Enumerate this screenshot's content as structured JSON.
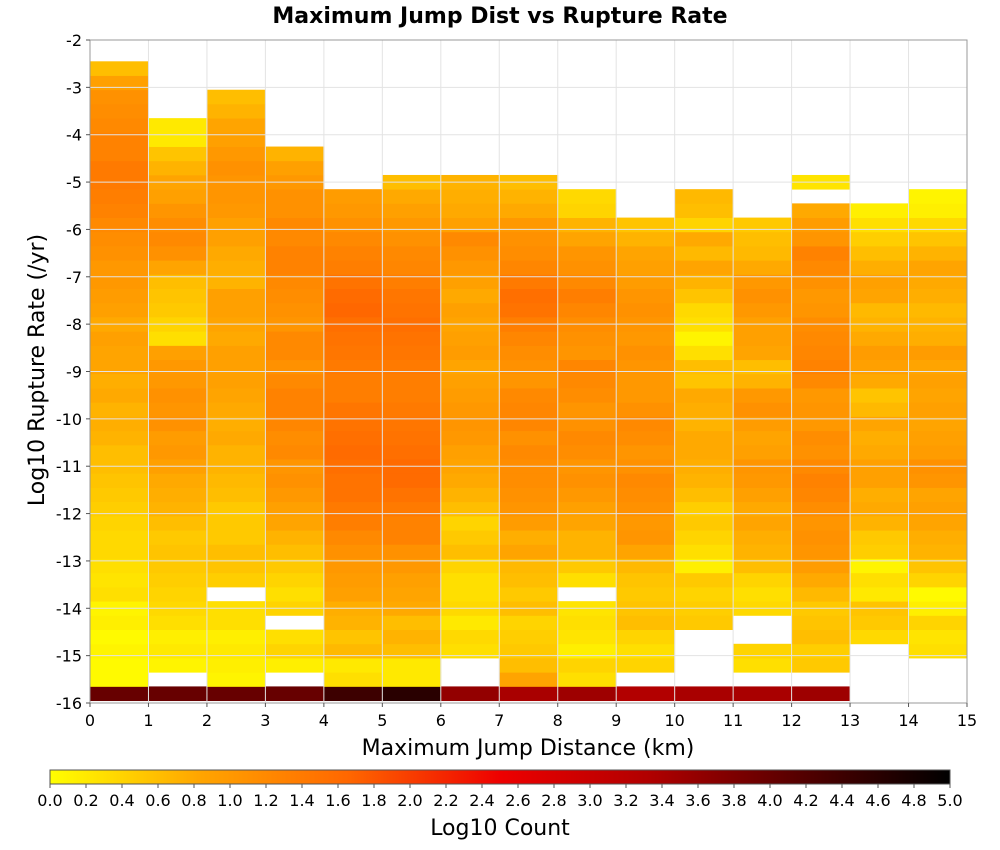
{
  "chart_data": {
    "type": "heatmap",
    "title": "Maximum Jump Dist vs Rupture Rate",
    "xlabel": "Maximum Jump Distance (km)",
    "ylabel": "Log10 Rupture Rate (/yr)",
    "colorbar_label": "Log10 Count",
    "xlim": [
      0,
      15
    ],
    "ylim": [
      -16,
      -2
    ],
    "x_ticks": [
      "0",
      "1",
      "2",
      "3",
      "4",
      "5",
      "6",
      "7",
      "8",
      "9",
      "10",
      "11",
      "12",
      "13",
      "14",
      "15"
    ],
    "y_ticks": [
      "-2",
      "-3",
      "-4",
      "-5",
      "-6",
      "-7",
      "-8",
      "-9",
      "-10",
      "-11",
      "-12",
      "-13",
      "-14",
      "-15",
      "-16"
    ],
    "colorbar_ticks": [
      "0.0",
      "0.2",
      "0.4",
      "0.6",
      "0.8",
      "1.0",
      "1.2",
      "1.4",
      "1.6",
      "1.8",
      "2.0",
      "2.2",
      "2.4",
      "2.6",
      "2.8",
      "3.0",
      "3.2",
      "3.4",
      "3.6",
      "3.8",
      "4.0",
      "4.2",
      "4.4",
      "4.6",
      "4.8",
      "5.0"
    ],
    "colorbar_range": [
      0,
      5
    ],
    "grid": true,
    "x_bin_width": 1,
    "y_bin_width": 0.3,
    "y_bin_start": -15.95,
    "colorscale": [
      "#ffff00",
      "#ffa500",
      "#ff6600",
      "#ee0000",
      "#b00000",
      "#550000",
      "#000000"
    ],
    "columns": [
      {
        "x": 0,
        "values": [
          4.0,
          0.05,
          0.05,
          0.1,
          0.05,
          0.15,
          0.1,
          0.3,
          0.25,
          0.3,
          0.35,
          0.35,
          0.4,
          0.45,
          0.5,
          0.55,
          0.6,
          0.6,
          0.7,
          0.75,
          0.7,
          0.8,
          0.75,
          0.85,
          0.85,
          0.9,
          0.8,
          0.9,
          0.95,
          1.0,
          1.0,
          1.1,
          1.15,
          1.2,
          1.3,
          1.35,
          1.4,
          1.4,
          1.3,
          1.3,
          1.2,
          1.15,
          1.1,
          0.9,
          0.6
        ]
      },
      {
        "x": 1,
        "values": [
          4.0,
          null,
          0.1,
          0.2,
          0.15,
          0.3,
          0.35,
          0.4,
          0.45,
          0.5,
          0.55,
          0.5,
          0.6,
          0.7,
          0.75,
          0.8,
          0.9,
          1.0,
          0.95,
          1.1,
          1.05,
          1.1,
          1.0,
          1.0,
          0.9,
          0.3,
          0.4,
          0.5,
          0.55,
          0.6,
          0.85,
          1.1,
          1.2,
          1.15,
          1.05,
          0.9,
          0.85,
          0.7,
          0.55,
          0.2,
          0.2
        ]
      },
      {
        "x": 2,
        "values": [
          4.0,
          0.1,
          0.15,
          0.2,
          0.15,
          0.3,
          0.3,
          null,
          0.45,
          0.55,
          0.6,
          0.5,
          0.5,
          0.5,
          0.6,
          0.65,
          0.7,
          0.7,
          0.8,
          0.75,
          0.8,
          0.85,
          0.9,
          0.9,
          0.9,
          0.8,
          0.85,
          0.9,
          0.9,
          0.7,
          0.75,
          0.8,
          0.9,
          0.9,
          1.0,
          1.05,
          1.05,
          1.1,
          1.0,
          0.9,
          0.85,
          0.7,
          0.6
        ]
      },
      {
        "x": 3,
        "values": [
          4.0,
          null,
          0.15,
          0.4,
          0.3,
          null,
          0.4,
          0.3,
          0.4,
          0.5,
          0.6,
          0.7,
          0.85,
          0.9,
          1.0,
          1.1,
          1.05,
          1.2,
          1.15,
          1.25,
          1.3,
          1.3,
          1.2,
          1.1,
          1.2,
          1.2,
          1.05,
          1.1,
          1.15,
          1.2,
          1.3,
          1.3,
          1.2,
          1.2,
          1.1,
          1.1,
          1.0,
          0.9,
          0.7
        ]
      },
      {
        "x": 4,
        "values": [
          4.4,
          0.3,
          0.2,
          0.65,
          0.55,
          0.7,
          0.75,
          0.9,
          0.95,
          1.0,
          1.1,
          1.2,
          1.35,
          1.4,
          1.5,
          1.5,
          1.55,
          1.6,
          1.55,
          1.5,
          1.45,
          1.35,
          1.35,
          1.4,
          1.45,
          1.5,
          1.55,
          1.65,
          1.6,
          1.5,
          1.35,
          1.3,
          1.2,
          1.1,
          1.0,
          0.95
        ]
      },
      {
        "x": 5,
        "values": [
          4.6,
          0.2,
          0.2,
          0.6,
          0.7,
          0.6,
          0.8,
          0.85,
          0.9,
          1.0,
          1.1,
          1.3,
          1.3,
          1.4,
          1.5,
          1.6,
          1.6,
          1.55,
          1.5,
          1.45,
          1.4,
          1.35,
          1.35,
          1.4,
          1.45,
          1.5,
          1.55,
          1.5,
          1.45,
          1.35,
          1.25,
          1.2,
          1.1,
          1.0,
          0.9,
          0.8,
          0.6
        ]
      },
      {
        "x": 6,
        "values": [
          3.6,
          null,
          null,
          0.3,
          0.35,
          0.2,
          0.35,
          0.3,
          0.3,
          0.4,
          0.6,
          0.5,
          0.4,
          0.6,
          0.7,
          0.8,
          0.85,
          0.9,
          1.0,
          1.05,
          1.0,
          0.95,
          0.9,
          0.85,
          0.95,
          0.9,
          0.85,
          0.9,
          0.8,
          0.9,
          1.0,
          1.1,
          1.2,
          0.9,
          0.8,
          0.75,
          0.7
        ]
      },
      {
        "x": 7,
        "values": [
          3.4,
          0.85,
          0.6,
          0.5,
          0.45,
          0.4,
          0.6,
          0.5,
          0.6,
          0.65,
          0.85,
          0.75,
          0.95,
          1.05,
          1.1,
          1.15,
          1.15,
          1.2,
          1.1,
          1.25,
          1.25,
          1.2,
          1.05,
          1.1,
          1.15,
          1.25,
          1.35,
          1.5,
          1.55,
          1.4,
          1.25,
          1.15,
          1.1,
          1.0,
          0.8,
          0.7,
          0.6
        ]
      },
      {
        "x": 8,
        "values": [
          3.5,
          0.3,
          0.4,
          0.15,
          0.25,
          0.3,
          0.25,
          null,
          0.3,
          0.5,
          0.7,
          0.7,
          0.85,
          0.9,
          1.0,
          1.1,
          1.05,
          1.15,
          1.2,
          1.1,
          1.05,
          1.15,
          1.2,
          1.25,
          1.05,
          1.1,
          1.15,
          1.25,
          1.35,
          1.2,
          1.1,
          1.05,
          0.85,
          0.7,
          0.4,
          0.35
        ]
      },
      {
        "x": 9,
        "values": [
          3.3,
          null,
          0.4,
          0.3,
          0.4,
          0.6,
          0.55,
          0.5,
          0.55,
          0.65,
          0.85,
          1.05,
          1.0,
          1.1,
          1.15,
          1.2,
          1.1,
          1.05,
          1.15,
          1.2,
          1.1,
          1.0,
          1.0,
          1.05,
          1.1,
          1.0,
          1.05,
          1.1,
          1.05,
          0.95,
          0.9,
          0.85,
          0.7,
          0.55
        ]
      },
      {
        "x": 10,
        "values": [
          3.4,
          null,
          null,
          null,
          null,
          0.5,
          0.45,
          0.4,
          0.5,
          0.15,
          0.3,
          0.4,
          0.5,
          0.45,
          0.6,
          0.7,
          0.75,
          0.8,
          0.8,
          0.7,
          0.75,
          0.8,
          0.55,
          0.6,
          0.3,
          0.1,
          0.3,
          0.35,
          0.55,
          0.7,
          0.85,
          0.65,
          0.8,
          0.4,
          0.6,
          0.65
        ]
      },
      {
        "x": 11,
        "values": [
          3.4,
          null,
          0.3,
          0.4,
          null,
          null,
          0.35,
          0.3,
          0.4,
          0.6,
          0.7,
          0.75,
          0.85,
          0.8,
          0.9,
          1.0,
          1.05,
          0.9,
          0.85,
          0.95,
          1.1,
          1.0,
          0.7,
          0.6,
          0.85,
          0.9,
          0.9,
          1.0,
          1.1,
          1.0,
          0.8,
          0.65,
          0.6,
          0.5
        ]
      },
      {
        "x": 12,
        "values": [
          3.5,
          null,
          0.5,
          0.45,
          0.6,
          0.55,
          0.5,
          0.65,
          0.8,
          0.95,
          1.05,
          1.1,
          1.05,
          1.15,
          1.25,
          1.3,
          1.2,
          1.1,
          1.15,
          1.0,
          1.05,
          1.0,
          1.2,
          1.3,
          1.25,
          1.2,
          1.15,
          1.05,
          1.0,
          1.1,
          1.2,
          1.3,
          1.05,
          0.95,
          0.8,
          null,
          0.25
        ]
      },
      {
        "x": 13,
        "values": [
          null,
          null,
          null,
          null,
          0.35,
          0.5,
          0.55,
          0.2,
          0.3,
          0.1,
          0.45,
          0.5,
          0.7,
          0.8,
          0.75,
          0.9,
          0.9,
          0.8,
          0.75,
          0.85,
          0.65,
          0.55,
          0.8,
          0.9,
          0.95,
          0.8,
          0.7,
          0.65,
          0.85,
          0.9,
          0.75,
          0.6,
          0.45,
          0.3,
          0.15
        ]
      },
      {
        "x": 14,
        "values": [
          null,
          null,
          null,
          0.3,
          0.25,
          0.4,
          0.15,
          0.05,
          0.4,
          0.55,
          0.7,
          0.75,
          0.85,
          0.9,
          0.85,
          1.05,
          1.1,
          0.95,
          0.9,
          0.85,
          0.9,
          0.85,
          0.9,
          0.85,
          0.95,
          0.75,
          0.7,
          0.65,
          0.75,
          0.8,
          0.85,
          0.7,
          0.55,
          0.35,
          0.15,
          0.1
        ]
      }
    ]
  }
}
